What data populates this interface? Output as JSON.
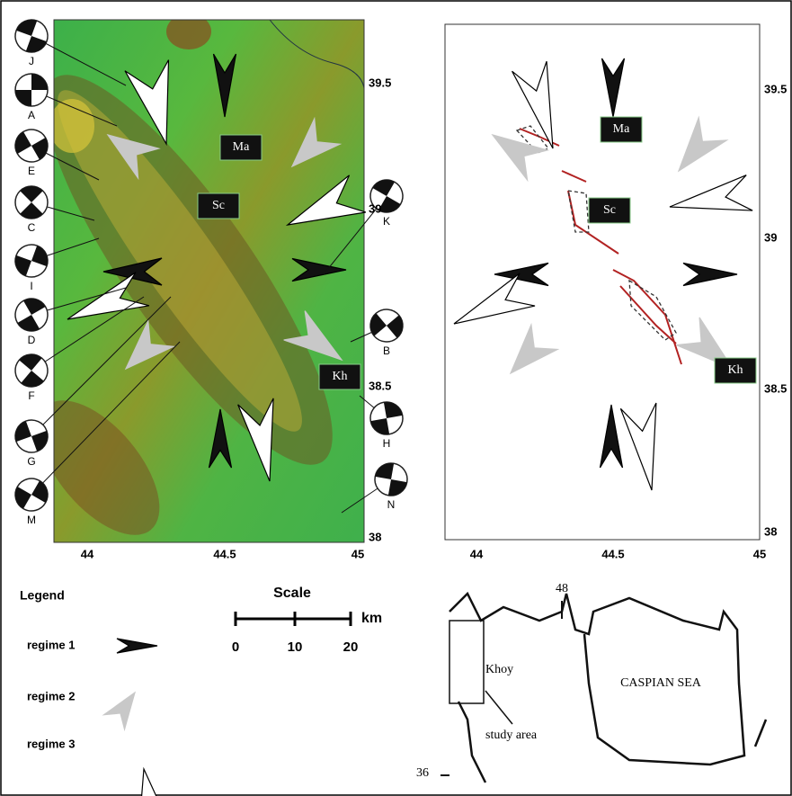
{
  "left_map": {
    "labels": [
      "Ma",
      "Sc",
      "Kh"
    ],
    "mechanisms": [
      "J",
      "A",
      "E",
      "C",
      "I",
      "D",
      "F",
      "G",
      "M",
      "K",
      "B",
      "H",
      "N"
    ],
    "lat_ticks": [
      39.5,
      39,
      38.5,
      38
    ],
    "lon_ticks": [
      44,
      44.5,
      45
    ]
  },
  "right_map": {
    "labels": [
      "Ma",
      "Sc",
      "Kh"
    ],
    "lat_ticks": [
      39.5,
      39,
      38.5,
      38
    ],
    "lon_ticks": [
      44,
      44.5,
      45
    ]
  },
  "legend": {
    "title": "Legend",
    "items": [
      "regime 1",
      "regime 2",
      "regime 3"
    ]
  },
  "scale": {
    "title": "Scale",
    "unit": "km",
    "ticks": [
      "0",
      "10",
      "20"
    ]
  },
  "inset": {
    "lon": "48",
    "lat": "36",
    "town": "Khoy",
    "area": "study area",
    "sea": "CASPIAN SEA"
  }
}
